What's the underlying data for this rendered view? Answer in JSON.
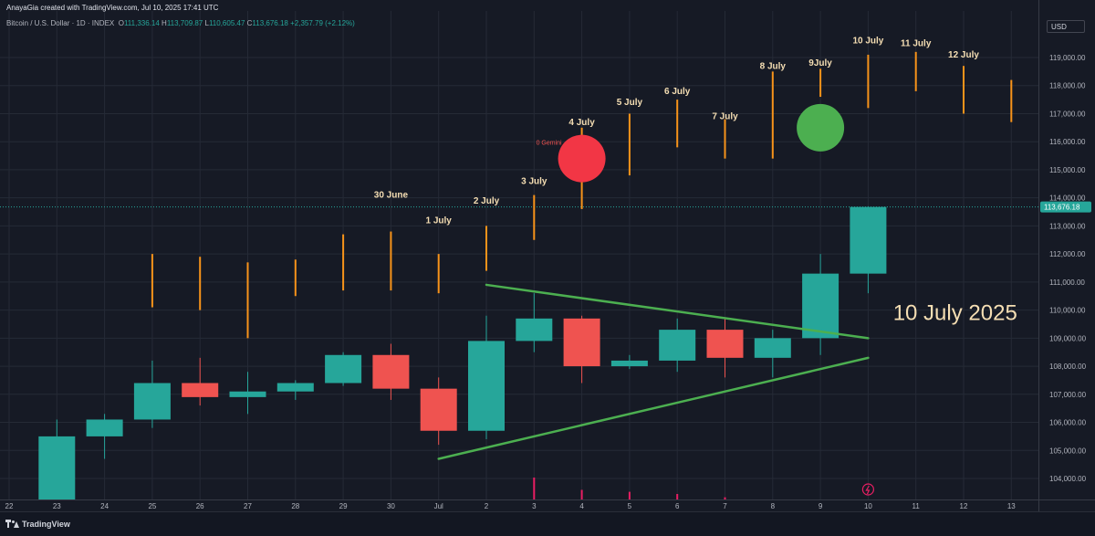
{
  "header": {
    "creator_line": "AnayaGia created with TradingView.com, Jul 10, 2025 17:41 UTC",
    "symbol": "Bitcoin / U.S. Dollar · 1D · INDEX",
    "o_label": "O",
    "o_value": "111,336.14",
    "h_label": "H",
    "h_value": "113,709.87",
    "l_label": "L",
    "l_value": "110,605.47",
    "c_label": "C",
    "c_value": "113,676.18",
    "change": "+2,357.79 (+2.12%)"
  },
  "currency": "USD",
  "brand": "TradingView",
  "colors": {
    "bull": "#26a69a",
    "bear": "#ef5350",
    "projection": "#f7931a",
    "trendline": "#4caf50",
    "red_circle": "#f23645",
    "green_circle": "#4caf50",
    "annotation": "#f5deb3",
    "grid": "#252a36",
    "volume": "#e91e63"
  },
  "chart_data": {
    "type": "candlestick",
    "ylim": [
      103300,
      119600
    ],
    "y_ticks": [
      104000,
      105000,
      106000,
      107000,
      108000,
      109000,
      110000,
      111000,
      112000,
      113000,
      114000,
      115000,
      116000,
      117000,
      118000,
      119000
    ],
    "y_tick_labels": [
      "104,000.00",
      "105,000.00",
      "106,000.00",
      "107,000.00",
      "108,000.00",
      "109,000.00",
      "110,000.00",
      "111,000.00",
      "112,000.00",
      "113,000.00",
      "114,000.00",
      "115,000.00",
      "116,000.00",
      "117,000.00",
      "118,000.00",
      "119,000.00"
    ],
    "x_ticks": [
      {
        "i": 0,
        "label": "22"
      },
      {
        "i": 1,
        "label": "23"
      },
      {
        "i": 2,
        "label": "24"
      },
      {
        "i": 3,
        "label": "25"
      },
      {
        "i": 4,
        "label": "26"
      },
      {
        "i": 5,
        "label": "27"
      },
      {
        "i": 6,
        "label": "28"
      },
      {
        "i": 7,
        "label": "29"
      },
      {
        "i": 8,
        "label": "30"
      },
      {
        "i": 9,
        "label": "Jul"
      },
      {
        "i": 10,
        "label": "2"
      },
      {
        "i": 11,
        "label": "3"
      },
      {
        "i": 12,
        "label": "4"
      },
      {
        "i": 13,
        "label": "5"
      },
      {
        "i": 14,
        "label": "6"
      },
      {
        "i": 15,
        "label": "7"
      },
      {
        "i": 16,
        "label": "8"
      },
      {
        "i": 17,
        "label": "9"
      },
      {
        "i": 18,
        "label": "10"
      },
      {
        "i": 19,
        "label": "11"
      },
      {
        "i": 20,
        "label": "12"
      },
      {
        "i": 21,
        "label": "13"
      }
    ],
    "candles": [
      {
        "i": 1,
        "o": 102300,
        "h": 106100,
        "l": 102000,
        "c": 105500
      },
      {
        "i": 2,
        "o": 105500,
        "h": 106300,
        "l": 104700,
        "c": 106100
      },
      {
        "i": 3,
        "o": 106100,
        "h": 108200,
        "l": 105800,
        "c": 107400
      },
      {
        "i": 4,
        "o": 107400,
        "h": 108300,
        "l": 106600,
        "c": 106900
      },
      {
        "i": 5,
        "o": 106900,
        "h": 107800,
        "l": 106300,
        "c": 107100
      },
      {
        "i": 6,
        "o": 107100,
        "h": 107500,
        "l": 106800,
        "c": 107400
      },
      {
        "i": 7,
        "o": 107400,
        "h": 108500,
        "l": 107300,
        "c": 108400
      },
      {
        "i": 8,
        "o": 108400,
        "h": 108800,
        "l": 106800,
        "c": 107200
      },
      {
        "i": 9,
        "o": 107200,
        "h": 107600,
        "l": 105200,
        "c": 105700
      },
      {
        "i": 10,
        "o": 105700,
        "h": 109800,
        "l": 105400,
        "c": 108900
      },
      {
        "i": 11,
        "o": 108900,
        "h": 110600,
        "l": 108500,
        "c": 109700
      },
      {
        "i": 12,
        "o": 109700,
        "h": 109800,
        "l": 107400,
        "c": 108000
      },
      {
        "i": 13,
        "o": 108000,
        "h": 108400,
        "l": 107900,
        "c": 108200
      },
      {
        "i": 14,
        "o": 108200,
        "h": 109700,
        "l": 107800,
        "c": 109300
      },
      {
        "i": 15,
        "o": 109300,
        "h": 109700,
        "l": 107600,
        "c": 108300
      },
      {
        "i": 16,
        "o": 108300,
        "h": 109300,
        "l": 107600,
        "c": 109000
      },
      {
        "i": 17,
        "o": 109000,
        "h": 112000,
        "l": 108400,
        "c": 111300
      },
      {
        "i": 18,
        "o": 111300,
        "h": 113700,
        "l": 110600,
        "c": 113676
      }
    ],
    "projection_bars": [
      {
        "i": 3,
        "low": 110100,
        "high": 112000
      },
      {
        "i": 4,
        "low": 110000,
        "high": 111900
      },
      {
        "i": 5,
        "low": 109000,
        "high": 111700
      },
      {
        "i": 6,
        "low": 110500,
        "high": 111800
      },
      {
        "i": 7,
        "low": 110700,
        "high": 112700
      },
      {
        "i": 8,
        "low": 110700,
        "high": 112800
      },
      {
        "i": 9,
        "low": 110600,
        "high": 112000
      },
      {
        "i": 10,
        "low": 111400,
        "high": 113000
      },
      {
        "i": 11,
        "low": 112500,
        "high": 114100
      },
      {
        "i": 12,
        "low": 113600,
        "high": 116500
      },
      {
        "i": 13,
        "low": 114800,
        "high": 117000
      },
      {
        "i": 14,
        "low": 115800,
        "high": 117500
      },
      {
        "i": 15,
        "low": 115400,
        "high": 116800
      },
      {
        "i": 16,
        "low": 115400,
        "high": 118500
      },
      {
        "i": 17,
        "low": 117600,
        "high": 118600
      },
      {
        "i": 18,
        "low": 117200,
        "high": 119100
      },
      {
        "i": 19,
        "low": 117800,
        "high": 119200
      },
      {
        "i": 20,
        "low": 117000,
        "high": 118700
      },
      {
        "i": 21,
        "low": 116700,
        "high": 118200
      }
    ],
    "projection_labels": [
      {
        "i": 8,
        "y": 114000,
        "text": "30 June"
      },
      {
        "i": 9,
        "y": 113100,
        "text": "1 July"
      },
      {
        "i": 10,
        "y": 113800,
        "text": "2 July"
      },
      {
        "i": 11,
        "y": 114500,
        "text": "3 July"
      },
      {
        "i": 12,
        "y": 116600,
        "text": "4 July"
      },
      {
        "i": 13,
        "y": 117300,
        "text": "5 July"
      },
      {
        "i": 14,
        "y": 117700,
        "text": "6 July"
      },
      {
        "i": 15,
        "y": 116800,
        "text": "7 July"
      },
      {
        "i": 16,
        "y": 118600,
        "text": "8 July"
      },
      {
        "i": 17,
        "y": 118700,
        "text": "9July"
      },
      {
        "i": 18,
        "y": 119500,
        "text": "10 July"
      },
      {
        "i": 19,
        "y": 119400,
        "text": "11 July"
      },
      {
        "i": 20,
        "y": 119000,
        "text": "12 July"
      }
    ],
    "trendlines": [
      {
        "x1": 10,
        "y1": 110900,
        "x2": 18,
        "y2": 109000
      },
      {
        "x1": 9,
        "y1": 104700,
        "x2": 18,
        "y2": 108300
      }
    ],
    "markers": [
      {
        "type": "red_circle",
        "i": 12,
        "y": 115400,
        "label": "0 Gemini"
      },
      {
        "type": "green_circle",
        "i": 17,
        "y": 116500
      }
    ],
    "volume_ticks": [
      {
        "i": 11,
        "h": 0.8
      },
      {
        "i": 12,
        "h": 0.35
      },
      {
        "i": 13,
        "h": 0.28
      },
      {
        "i": 14,
        "h": 0.2
      },
      {
        "i": 15,
        "h": 0.08
      }
    ],
    "annotations": [
      {
        "i": 19,
        "y": 109900,
        "text": "10 July 2025"
      }
    ],
    "last_price": 113676.18,
    "last_price_label": "113,676.18"
  }
}
